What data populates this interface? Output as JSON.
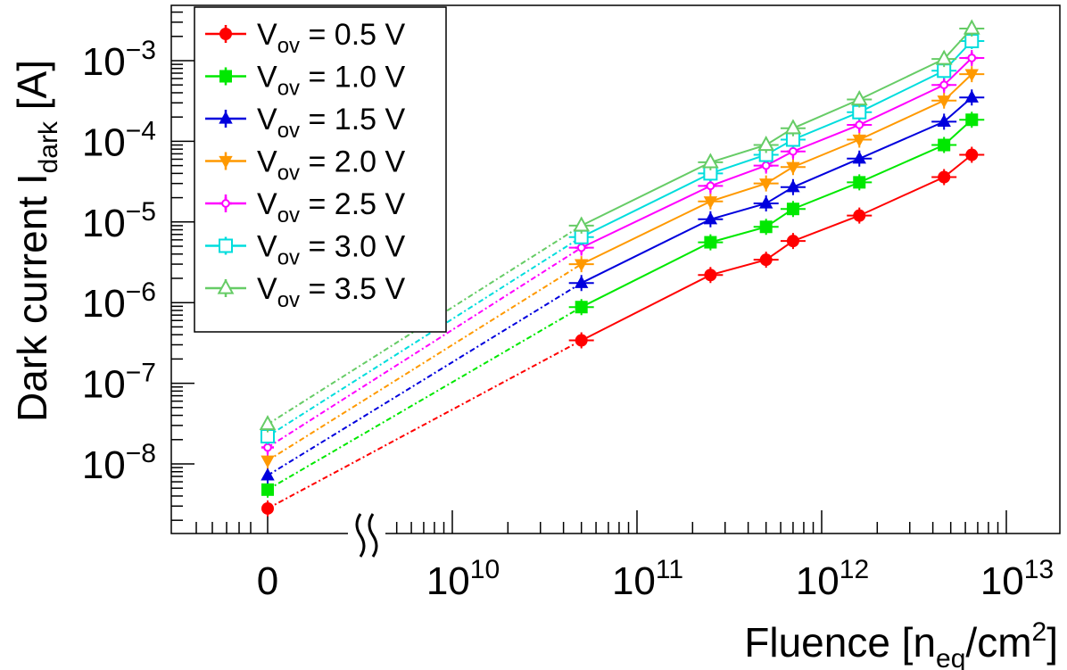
{
  "chart_data": {
    "type": "line",
    "xlabel": {
      "base": "Fluence [n",
      "sub": "eq",
      "mid": "/cm",
      "sup": "2",
      "end": "]"
    },
    "ylabel": {
      "base": "Dark current I",
      "sub": "dark",
      "end": " [A]"
    },
    "x_scale": "log",
    "y_scale": "log",
    "x_axis_break": true,
    "x_ticks": [
      {
        "text": "0",
        "base": "",
        "exp": ""
      },
      {
        "text": "10^10",
        "base": "10",
        "exp": "10"
      },
      {
        "text": "10^11",
        "base": "10",
        "exp": "11"
      },
      {
        "text": "10^12",
        "base": "10",
        "exp": "12"
      },
      {
        "text": "10^13",
        "base": "10",
        "exp": "13"
      }
    ],
    "y_ticks": [
      {
        "text": "10^-8",
        "base": "10",
        "exp": "−8"
      },
      {
        "text": "10^-7",
        "base": "10",
        "exp": "−7"
      },
      {
        "text": "10^-6",
        "base": "10",
        "exp": "−6"
      },
      {
        "text": "10^-5",
        "base": "10",
        "exp": "−5"
      },
      {
        "text": "10^-4",
        "base": "10",
        "exp": "−4"
      },
      {
        "text": "10^-3",
        "base": "10",
        "exp": "−3"
      }
    ],
    "ylim_log10": [
      -8.9,
      -2.35
    ],
    "xlim_log10": [
      8.6,
      13.3
    ],
    "fluence": [
      0,
      50000000000.0,
      250000000000.0,
      500000000000.0,
      700000000000.0,
      1600000000000.0,
      4600000000000.0,
      6500000000000.0
    ],
    "legend_position": "top-left",
    "series": [
      {
        "name": "V_ov = 0.5 V",
        "label_parts": [
          "V",
          "ov",
          " = 0.5 V"
        ],
        "color": "#ff0000",
        "marker": "circle-filled",
        "values": [
          2.8e-09,
          3.4e-07,
          2.2e-06,
          3.4e-06,
          5.8e-06,
          1.2e-05,
          3.6e-05,
          6.8e-05
        ]
      },
      {
        "name": "V_ov = 1.0 V",
        "label_parts": [
          "V",
          "ov",
          " = 1.0 V"
        ],
        "color": "#00e800",
        "marker": "square-filled",
        "values": [
          4.8e-09,
          8.8e-07,
          5.6e-06,
          8.7e-06,
          1.45e-05,
          3.1e-05,
          9e-05,
          0.000185
        ]
      },
      {
        "name": "V_ov = 1.5 V",
        "label_parts": [
          "V",
          "ov",
          " = 1.5 V"
        ],
        "color": "#0000dd",
        "marker": "triangle-up-filled",
        "values": [
          7.2e-09,
          1.75e-06,
          1.08e-05,
          1.7e-05,
          2.7e-05,
          6.1e-05,
          0.000175,
          0.00035
        ]
      },
      {
        "name": "V_ov = 2.0 V",
        "label_parts": [
          "V",
          "ov",
          " = 2.0 V"
        ],
        "color": "#ff9900",
        "marker": "triangle-down-filled",
        "values": [
          1.1e-08,
          3e-06,
          1.8e-05,
          3e-05,
          4.8e-05,
          0.000105,
          0.00032,
          0.00068
        ]
      },
      {
        "name": "V_ov = 2.5 V",
        "label_parts": [
          "V",
          "ov",
          " = 2.5 V"
        ],
        "color": "#ff00ff",
        "marker": "cross-open",
        "values": [
          1.6e-08,
          4.8e-06,
          2.8e-05,
          5e-05,
          7.5e-05,
          0.00016,
          0.0005,
          0.00108
        ]
      },
      {
        "name": "V_ov = 3.0 V",
        "label_parts": [
          "V",
          "ov",
          " = 3.0 V"
        ],
        "color": "#00dddd",
        "marker": "square-open",
        "values": [
          2.2e-08,
          6.5e-06,
          4e-05,
          6.8e-05,
          0.000105,
          0.00023,
          0.00075,
          0.00175
        ]
      },
      {
        "name": "V_ov = 3.5 V",
        "label_parts": [
          "V",
          "ov",
          " = 3.5 V"
        ],
        "color": "#66cc66",
        "marker": "triangle-up-open",
        "values": [
          3.1e-08,
          9e-06,
          5.5e-05,
          9e-05,
          0.000145,
          0.00033,
          0.00105,
          0.0025
        ]
      }
    ]
  }
}
